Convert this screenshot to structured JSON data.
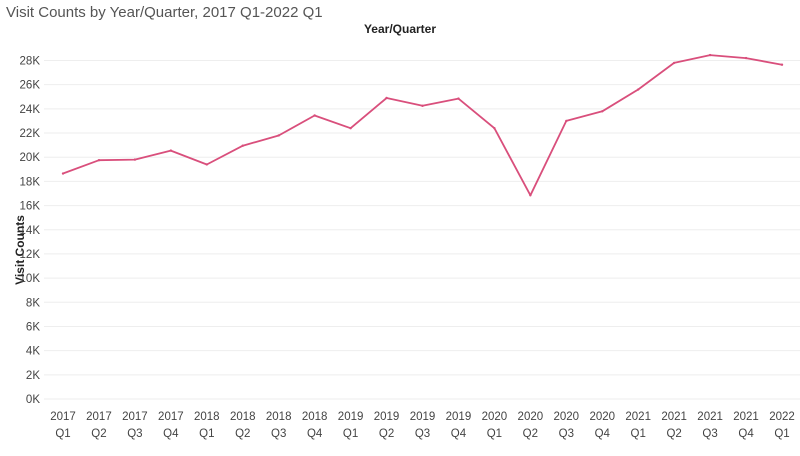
{
  "title": "Visit Counts by Year/Quarter, 2017 Q1-2022 Q1",
  "chart_data": {
    "type": "line",
    "title": "Visit Counts by Year/Quarter, 2017 Q1-2022 Q1",
    "header": "Year/Quarter",
    "xlabel": "",
    "ylabel": "Visit Counts",
    "categories": [
      {
        "year": "2017",
        "quarter": "Q1"
      },
      {
        "year": "2017",
        "quarter": "Q2"
      },
      {
        "year": "2017",
        "quarter": "Q3"
      },
      {
        "year": "2017",
        "quarter": "Q4"
      },
      {
        "year": "2018",
        "quarter": "Q1"
      },
      {
        "year": "2018",
        "quarter": "Q2"
      },
      {
        "year": "2018",
        "quarter": "Q3"
      },
      {
        "year": "2018",
        "quarter": "Q4"
      },
      {
        "year": "2019",
        "quarter": "Q1"
      },
      {
        "year": "2019",
        "quarter": "Q2"
      },
      {
        "year": "2019",
        "quarter": "Q3"
      },
      {
        "year": "2019",
        "quarter": "Q4"
      },
      {
        "year": "2020",
        "quarter": "Q1"
      },
      {
        "year": "2020",
        "quarter": "Q2"
      },
      {
        "year": "2020",
        "quarter": "Q3"
      },
      {
        "year": "2020",
        "quarter": "Q4"
      },
      {
        "year": "2021",
        "quarter": "Q1"
      },
      {
        "year": "2021",
        "quarter": "Q2"
      },
      {
        "year": "2021",
        "quarter": "Q3"
      },
      {
        "year": "2021",
        "quarter": "Q4"
      },
      {
        "year": "2022",
        "quarter": "Q1"
      }
    ],
    "series": [
      {
        "color": "#d94f7c",
        "values": [
          18650,
          19750,
          19800,
          20550,
          19400,
          20950,
          21800,
          23450,
          22400,
          24900,
          24250,
          24850,
          22400,
          16850,
          23000,
          23800,
          25600,
          27800,
          28450,
          28200,
          27650
        ]
      }
    ],
    "ylim": [
      0,
      29500
    ],
    "yticks": [
      {
        "value": 0,
        "label": "0K"
      },
      {
        "value": 2000,
        "label": "2K"
      },
      {
        "value": 4000,
        "label": "4K"
      },
      {
        "value": 6000,
        "label": "6K"
      },
      {
        "value": 8000,
        "label": "8K"
      },
      {
        "value": 10000,
        "label": "10K"
      },
      {
        "value": 12000,
        "label": "12K"
      },
      {
        "value": 14000,
        "label": "14K"
      },
      {
        "value": 16000,
        "label": "16K"
      },
      {
        "value": 18000,
        "label": "18K"
      },
      {
        "value": 20000,
        "label": "20K"
      },
      {
        "value": 22000,
        "label": "22K"
      },
      {
        "value": 24000,
        "label": "24K"
      },
      {
        "value": 26000,
        "label": "26K"
      },
      {
        "value": 28000,
        "label": "28K"
      }
    ],
    "grid": true,
    "legend": "none"
  }
}
